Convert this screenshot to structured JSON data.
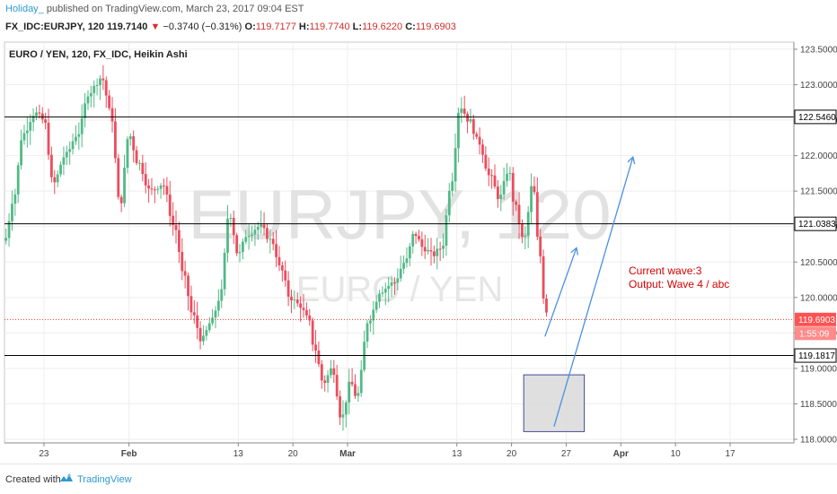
{
  "header": {
    "user": "Holiday_",
    "published_text": "published on TradingView.com, March 23, 2017 09:04 EST",
    "symbol": "FX_IDC:EURJPY, 120",
    "last": "119.7140",
    "change_arrow": "▼",
    "change": "−0.3740 (−0.31%)",
    "o_label": "O:",
    "o": "119.7177",
    "h_label": "H:",
    "h": "119.7740",
    "l_label": "L:",
    "l": "119.6220",
    "c_label": "C:",
    "c": "119.6903"
  },
  "chart_data": {
    "type": "candlestick",
    "title": "EURO / YEN, 120, FX_IDC, Heikin Ashi",
    "watermark_symbol": "EURJPY, 120",
    "watermark_name": "EURO / YEN",
    "ylim": [
      117.95,
      123.6
    ],
    "y_ticks": [
      "118.0000",
      "118.5000",
      "119.0000",
      "119.5000",
      "120.0000",
      "120.5000",
      "121.0000",
      "121.5000",
      "122.0000",
      "122.5000",
      "123.0000",
      "123.5000"
    ],
    "x_ticks": [
      {
        "label": "23",
        "t": 6.5
      },
      {
        "label": "Feb",
        "t": 20.5
      },
      {
        "label": "13",
        "t": 38.5
      },
      {
        "label": "20",
        "t": 47.5
      },
      {
        "label": "Mar",
        "t": 56.5
      },
      {
        "label": "13",
        "t": 74.5
      },
      {
        "label": "20",
        "t": 83.5
      },
      {
        "label": "27",
        "t": 92.5
      },
      {
        "label": "Apr",
        "t": 101.5
      },
      {
        "label": "10",
        "t": 110.5
      },
      {
        "label": "17",
        "t": 119.5
      }
    ],
    "x_range": [
      0,
      130
    ],
    "levels": [
      {
        "price": 122.546,
        "label": "122.5460"
      },
      {
        "price": 121.0383,
        "label": "121.0383"
      },
      {
        "price": 119.1817,
        "label": "119.1817"
      }
    ],
    "current_price": {
      "price": 119.6903,
      "label": "119.6903",
      "countdown": "1:55:09"
    },
    "annotation_lines": [
      "Current wave:3",
      "Output: Wave 4 / abc"
    ],
    "target_box": {
      "t0": 85.5,
      "t1": 95.5,
      "p_top": 118.91,
      "p_bottom": 118.11
    },
    "arrows": [
      {
        "t0": 89.0,
        "p0": 119.45,
        "t1": 94.2,
        "p1": 120.7
      },
      {
        "t0": 90.5,
        "p0": 118.18,
        "t1": 103.5,
        "p1": 121.98
      }
    ],
    "colors": {
      "up": "#53b987",
      "down": "#eb4d5c",
      "level": "#000000",
      "current": "#e53935",
      "arrow": "#4a90e2",
      "annotation": "#d50000"
    }
  },
  "footer": {
    "created": "Created with",
    "brand": "TradingView"
  }
}
